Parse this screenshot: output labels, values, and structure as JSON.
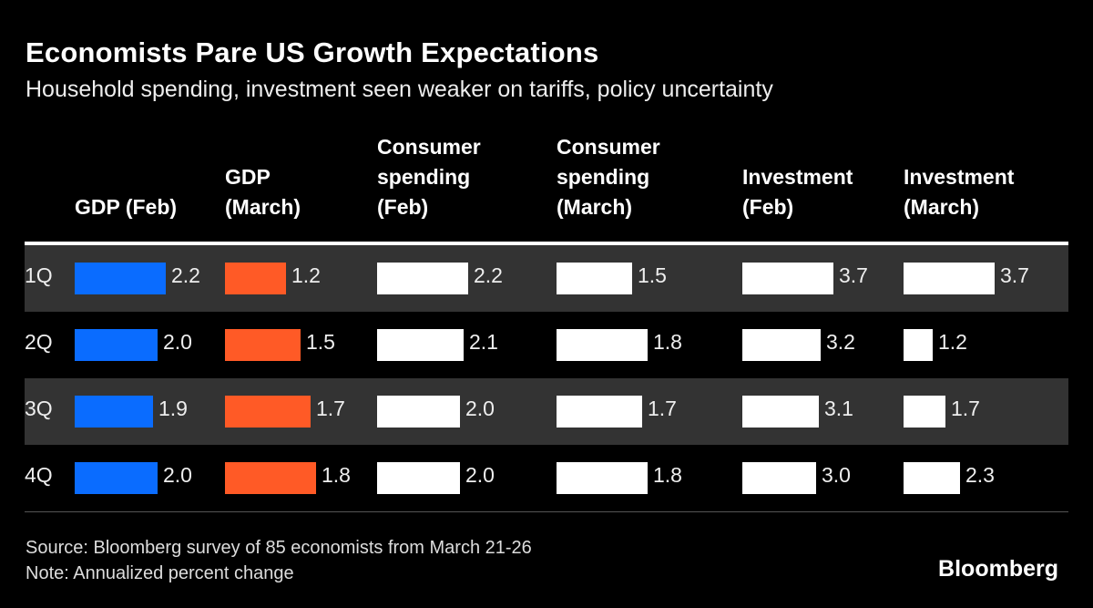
{
  "chart_data": {
    "type": "table",
    "title": "Economists Pare US Growth Expectations",
    "subtitle": "Household spending, investment seen weaker on tariffs, policy uncertainty",
    "columns": [
      "GDP (Feb)",
      "GDP (March)",
      "Consumer spending (Feb)",
      "Consumer spending (March)",
      "Investment (Feb)",
      "Investment (March)"
    ],
    "column_colors": [
      "#0a6cff",
      "#ff5a26",
      "#ffffff",
      "#ffffff",
      "#ffffff",
      "#ffffff"
    ],
    "rows": [
      {
        "label": "1Q",
        "values": [
          2.2,
          1.2,
          2.2,
          1.5,
          3.7,
          3.7
        ]
      },
      {
        "label": "2Q",
        "values": [
          2.0,
          1.5,
          2.1,
          1.8,
          3.2,
          1.2
        ]
      },
      {
        "label": "3Q",
        "values": [
          1.9,
          1.7,
          2.0,
          1.7,
          3.1,
          1.7
        ]
      },
      {
        "label": "4Q",
        "values": [
          2.0,
          1.8,
          2.0,
          1.8,
          3.0,
          2.3
        ]
      }
    ],
    "row_shading": "alternating"
  },
  "footer": {
    "source": "Source: Bloomberg survey of 85 economists from March 21-26",
    "note": "Note: Annualized percent change",
    "logo": "Bloomberg"
  }
}
